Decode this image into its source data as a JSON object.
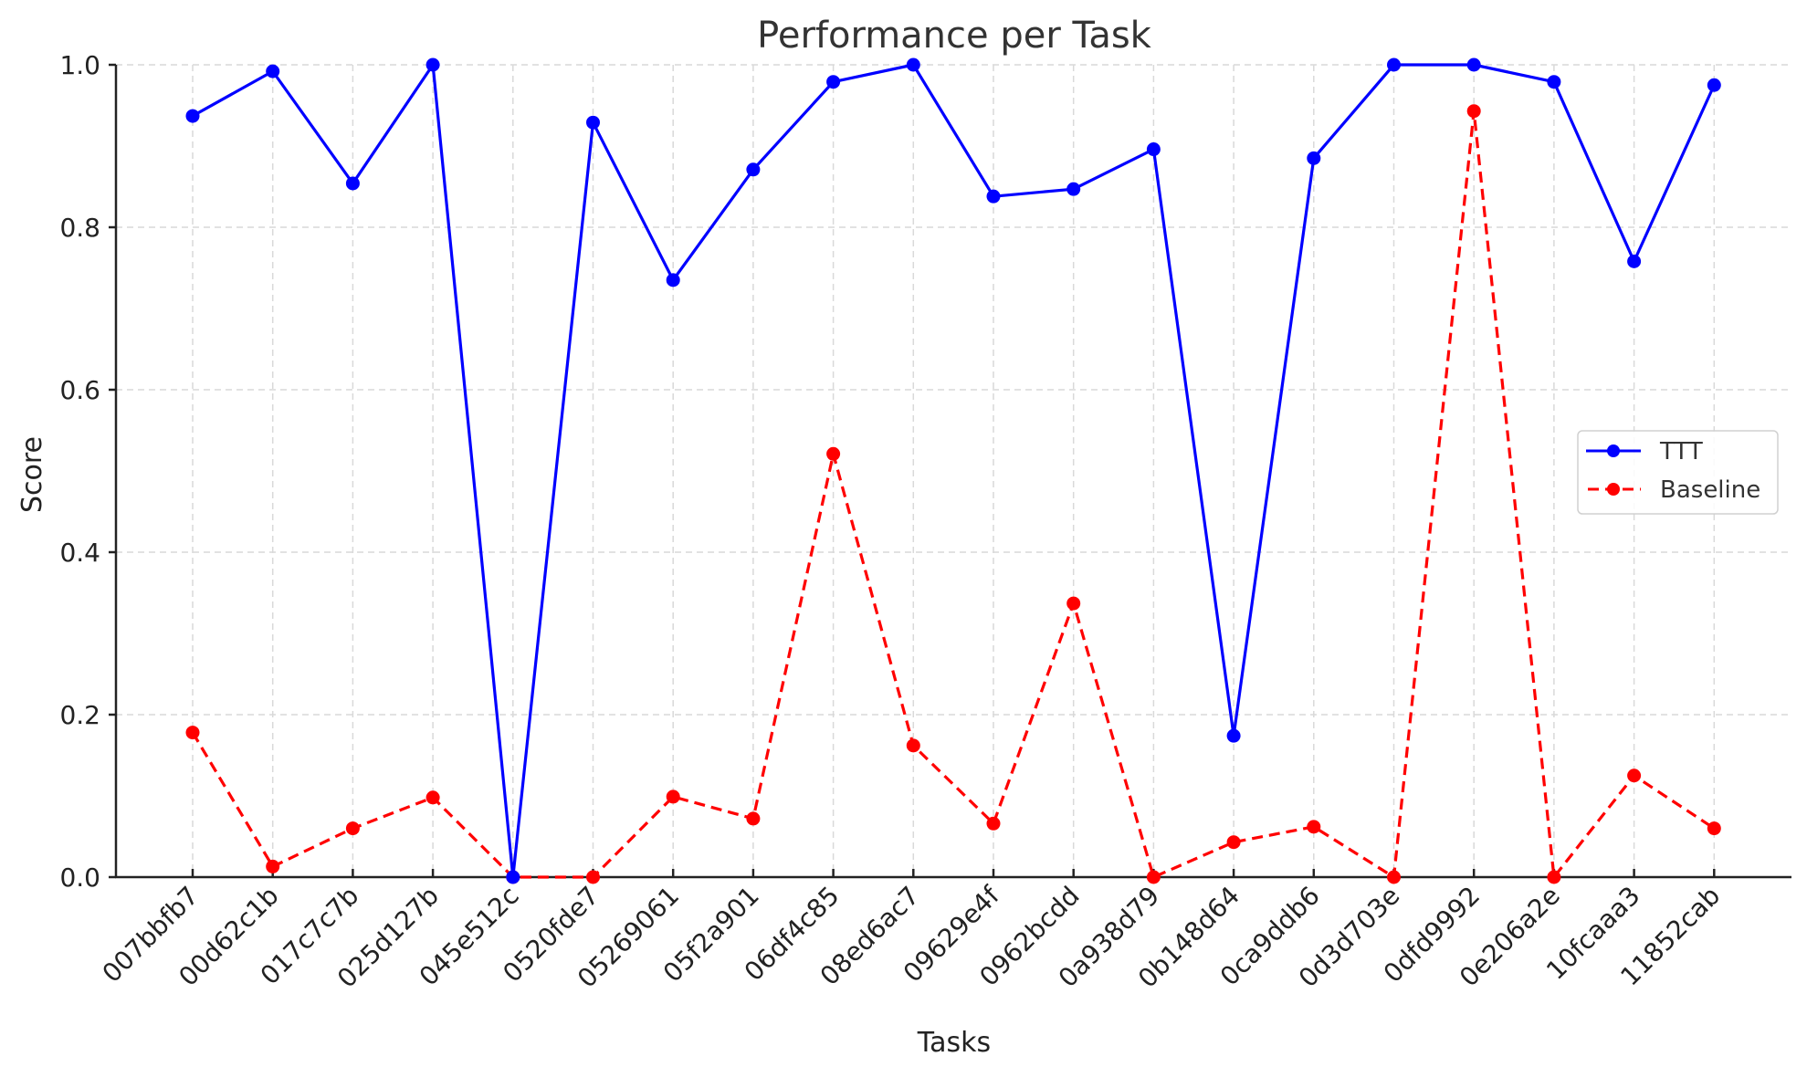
{
  "chart_data": {
    "type": "line",
    "title": "Performance per Task",
    "xlabel": "Tasks",
    "ylabel": "Score",
    "ylim": [
      0.0,
      1.0
    ],
    "yticks": [
      "0.0",
      "0.2",
      "0.4",
      "0.6",
      "0.8",
      "1.0"
    ],
    "grid": true,
    "legend_position": "center right",
    "categories": [
      "007bbfb7",
      "00d62c1b",
      "017c7c7b",
      "025d127b",
      "045e512c",
      "0520fde7",
      "05269061",
      "05f2a901",
      "06df4c85",
      "08ed6ac7",
      "09629e4f",
      "0962bcdd",
      "0a938d79",
      "0b148d64",
      "0ca9ddb6",
      "0d3d703e",
      "0dfd9992",
      "0e206a2e",
      "10fcaaa3",
      "11852cab"
    ],
    "series": [
      {
        "name": "TTT",
        "color": "#0000ff",
        "style": "solid",
        "marker": "circle",
        "values": [
          0.937,
          0.992,
          0.854,
          1.0,
          0.0,
          0.929,
          0.735,
          0.871,
          0.979,
          1.0,
          0.838,
          0.847,
          0.896,
          0.174,
          0.885,
          1.0,
          1.0,
          0.979,
          0.758,
          0.975
        ]
      },
      {
        "name": "Baseline",
        "color": "#ff0000",
        "style": "dashed",
        "marker": "circle",
        "values": [
          0.178,
          0.013,
          0.06,
          0.098,
          0.0,
          0.0,
          0.099,
          0.072,
          0.521,
          0.162,
          0.066,
          0.337,
          0.0,
          0.043,
          0.062,
          0.0,
          0.943,
          0.0,
          0.125,
          0.06
        ]
      }
    ]
  }
}
